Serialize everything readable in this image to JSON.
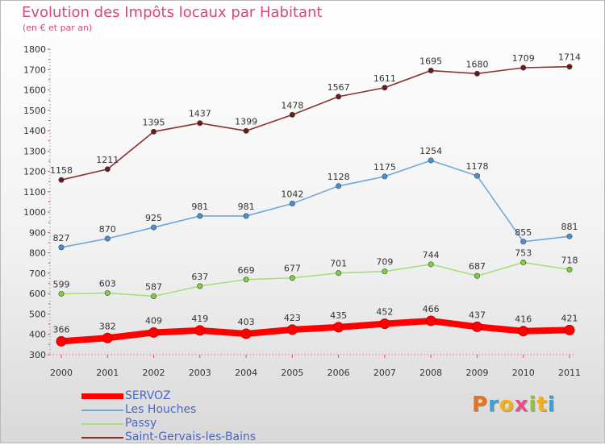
{
  "title": "Evolution des Impôts locaux par Habitant",
  "subtitle": "(en € et par an)",
  "logo": {
    "text": "Proxiti",
    "letter_colors": [
      "#e8731d",
      "#3aa0d8",
      "#f2b01c",
      "#e84d8a",
      "#8cc63e",
      "#f2b01c",
      "#3aa0d8"
    ]
  },
  "chart_data": {
    "type": "line",
    "title": "Evolution des Impôts locaux par Habitant",
    "subtitle": "(en € et par an)",
    "xlabel": "",
    "ylabel": "",
    "x": [
      "2000",
      "2001",
      "2002",
      "2003",
      "2004",
      "2005",
      "2006",
      "2007",
      "2008",
      "2009",
      "2010",
      "2011"
    ],
    "ylim": [
      300,
      1800
    ],
    "yticks": [
      300,
      400,
      500,
      600,
      700,
      800,
      900,
      1000,
      1100,
      1200,
      1300,
      1400,
      1500,
      1600,
      1700,
      1800
    ],
    "grid": false,
    "legend_position": "bottom-left",
    "series": [
      {
        "name": "SERVOZ",
        "color": "#ff0000",
        "values": [
          366,
          382,
          409,
          419,
          403,
          423,
          435,
          452,
          466,
          437,
          416,
          421
        ]
      },
      {
        "name": "Les Houches",
        "color": "#6fa8dc",
        "marker_color": "#4a90d0",
        "values": [
          827,
          870,
          925,
          981,
          981,
          1042,
          1128,
          1175,
          1254,
          1178,
          855,
          881
        ]
      },
      {
        "name": "Passy",
        "color": "#a8de7c",
        "marker_color": "#7fd040",
        "values": [
          599,
          603,
          587,
          637,
          669,
          677,
          701,
          709,
          744,
          687,
          753,
          718
        ]
      },
      {
        "name": "Saint-Gervais-les-Bains",
        "color": "#8b3030",
        "marker_color": "#6b1a1a",
        "values": [
          1158,
          1211,
          1395,
          1437,
          1399,
          1478,
          1567,
          1611,
          1695,
          1680,
          1709,
          1714
        ]
      }
    ]
  }
}
